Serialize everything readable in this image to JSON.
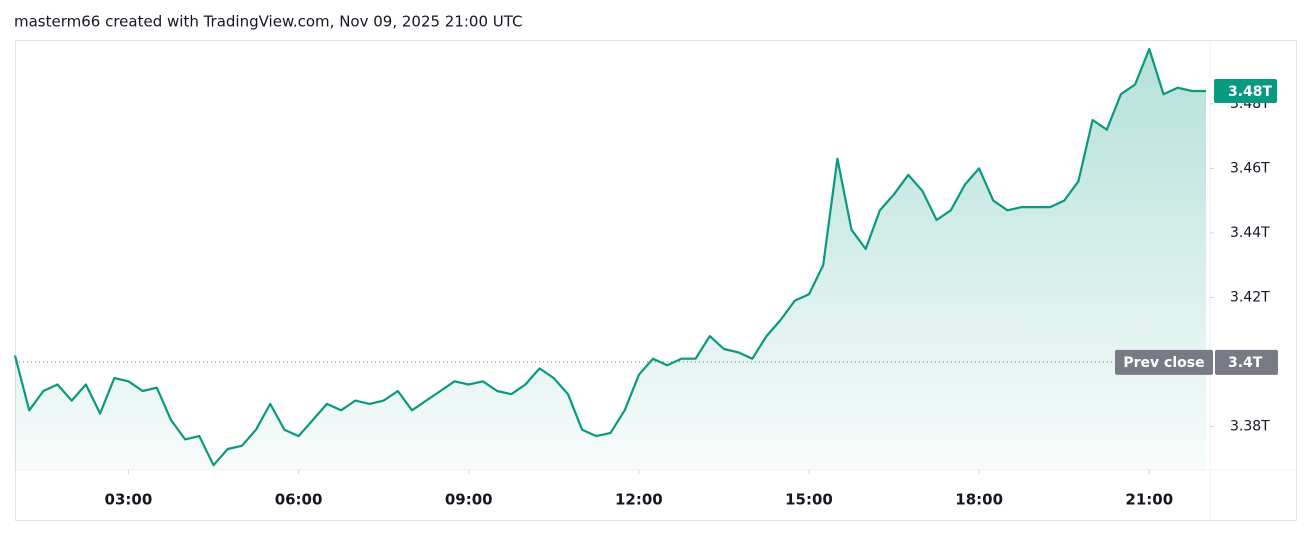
{
  "chart_data": {
    "type": "area",
    "title": "masterm66 created with TradingView.com, Nov 09, 2025 21:00 UTC",
    "x": [
      "01:00",
      "01:15",
      "01:30",
      "01:45",
      "02:00",
      "02:15",
      "02:30",
      "02:45",
      "03:00",
      "03:15",
      "03:30",
      "03:45",
      "04:00",
      "04:15",
      "04:30",
      "04:45",
      "05:00",
      "05:15",
      "05:30",
      "05:45",
      "06:00",
      "06:15",
      "06:30",
      "06:45",
      "07:00",
      "07:15",
      "07:30",
      "07:45",
      "08:00",
      "08:15",
      "08:30",
      "08:45",
      "09:00",
      "09:15",
      "09:30",
      "09:45",
      "10:00",
      "10:15",
      "10:30",
      "10:45",
      "11:00",
      "11:15",
      "11:30",
      "11:45",
      "12:00",
      "12:15",
      "12:30",
      "12:45",
      "13:00",
      "13:15",
      "13:30",
      "13:45",
      "14:00",
      "14:15",
      "14:30",
      "14:45",
      "15:00",
      "15:15",
      "15:30",
      "15:45",
      "16:00",
      "16:15",
      "16:30",
      "16:45",
      "17:00",
      "17:15",
      "17:30",
      "17:45",
      "18:00",
      "18:15",
      "18:30",
      "18:45",
      "19:00",
      "19:15",
      "19:30",
      "19:45",
      "20:00",
      "20:15",
      "20:30",
      "20:45",
      "21:00",
      "21:15",
      "21:30",
      "21:45",
      "22:00"
    ],
    "series": [
      {
        "color": "#089981",
        "values": [
          3.402,
          3.385,
          3.391,
          3.393,
          3.388,
          3.393,
          3.384,
          3.395,
          3.394,
          3.391,
          3.392,
          3.382,
          3.376,
          3.377,
          3.368,
          3.373,
          3.374,
          3.379,
          3.387,
          3.379,
          3.377,
          3.382,
          3.387,
          3.385,
          3.388,
          3.387,
          3.388,
          3.391,
          3.385,
          3.388,
          3.391,
          3.394,
          3.393,
          3.394,
          3.391,
          3.39,
          3.393,
          3.398,
          3.395,
          3.39,
          3.379,
          3.377,
          3.378,
          3.385,
          3.396,
          3.401,
          3.399,
          3.401,
          3.401,
          3.408,
          3.404,
          3.403,
          3.401,
          3.408,
          3.413,
          3.419,
          3.421,
          3.43,
          3.463,
          3.441,
          3.435,
          3.447,
          3.452,
          3.458,
          3.453,
          3.444,
          3.447,
          3.455,
          3.46,
          3.45,
          3.447,
          3.448,
          3.448,
          3.448,
          3.45,
          3.456,
          3.475,
          3.472,
          3.483,
          3.486,
          3.497,
          3.483,
          3.485,
          3.484,
          3.484
        ]
      }
    ],
    "xlim": [
      "01:00",
      "22:00"
    ],
    "xticks": [
      "03:00",
      "06:00",
      "09:00",
      "12:00",
      "15:00",
      "18:00",
      "21:00"
    ],
    "ylim": [
      3.3665,
      3.4998
    ],
    "yticks": [
      {
        "value": 3.38,
        "label": "3.38T"
      },
      {
        "value": 3.42,
        "label": "3.42T"
      },
      {
        "value": 3.44,
        "label": "3.44T"
      },
      {
        "value": 3.46,
        "label": "3.46T"
      },
      {
        "value": 3.48,
        "label": "3.48T"
      }
    ],
    "prev_close": {
      "name": "Prev close",
      "value": 3.4,
      "value_label": "3.4T"
    },
    "last_value_label": "3.48T",
    "grid": false
  }
}
